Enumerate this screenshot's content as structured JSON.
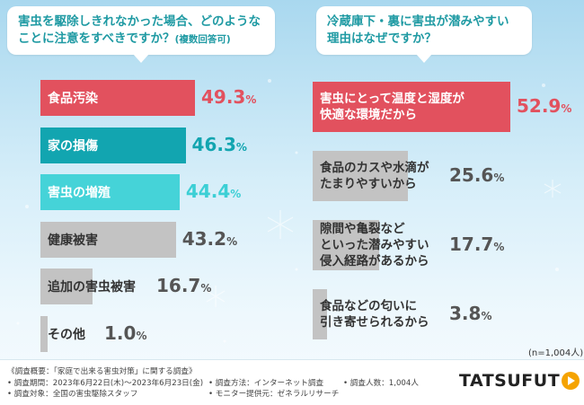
{
  "colors": {
    "red": "#e2515e",
    "teal": "#12a5b0",
    "cyan": "#45d3d8",
    "gray": "#c3c3c3"
  },
  "left_question": {
    "line1": "害虫を駆除しきれなかった場合、どのような",
    "line2": "ことに注意をすべきですか？",
    "note": "(複数回答可)"
  },
  "right_question": {
    "line1": "冷蔵庫下・裏に害虫が潜みやすい",
    "line2": "理由はなぜですか？"
  },
  "sample_note": "(n=1,004人)",
  "chart_data": [
    {
      "type": "bar",
      "orientation": "horizontal",
      "unit": "%",
      "categories": [
        "食品汚染",
        "家の損傷",
        "害虫の増殖",
        "健康被害",
        "追加の害虫被害",
        "その他"
      ],
      "values": [
        49.3,
        46.3,
        44.4,
        43.2,
        16.7,
        1.0
      ],
      "value_labels": [
        "49.3",
        "46.3",
        "44.4",
        "43.2",
        "16.7",
        "1.0"
      ],
      "bar_colors": [
        "red",
        "teal",
        "cyan",
        "gray",
        "gray",
        "gray"
      ],
      "value_colors": [
        "red",
        "teal",
        "cyan",
        "gray",
        "gray",
        "gray"
      ]
    },
    {
      "type": "bar",
      "orientation": "horizontal",
      "unit": "%",
      "categories": [
        "害虫にとって温度と湿度が\n快適な環境だから",
        "食品のカスや水滴が\nたまりやすいから",
        "隙間や亀裂など\nといった潜みやすい\n侵入経路があるから",
        "食品などの匂いに\n引き寄せられるから"
      ],
      "values": [
        52.9,
        25.6,
        17.7,
        3.8
      ],
      "value_labels": [
        "52.9",
        "25.6",
        "17.7",
        "3.8"
      ],
      "bar_colors": [
        "red",
        "gray",
        "gray",
        "gray"
      ],
      "value_colors": [
        "red",
        "gray",
        "gray",
        "gray"
      ]
    }
  ],
  "footer": {
    "survey": "《調査概要：「家庭で出来る害虫対策」に関する調査》",
    "period": "• 調査期間：2023年6月22日(木)〜2023年6月23日(金)",
    "target": "• 調査対象：全国の害虫駆除スタッフ",
    "method": "• 調査方法：インターネット調査",
    "provider": "• モニター提供元：ゼネラルリサーチ",
    "count": "• 調査人数：1,004人"
  },
  "logo": {
    "text_a": "TATSU",
    "text_b": "FUT"
  }
}
